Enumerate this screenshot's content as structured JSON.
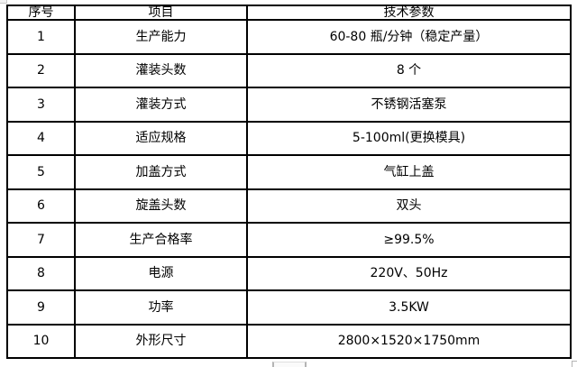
{
  "table": {
    "headers": [
      "序号",
      "项目",
      "技术参数"
    ],
    "rows": [
      {
        "no": "1",
        "item": "生产能力",
        "value": "60-80 瓶/分钟（稳定产量）"
      },
      {
        "no": "2",
        "item": "灌装头数",
        "value": "8 个"
      },
      {
        "no": "3",
        "item": "灌装方式",
        "value": "不锈钢活塞泵"
      },
      {
        "no": "4",
        "item": "适应规格",
        "value": "5-100ml(更换模具)"
      },
      {
        "no": "5",
        "item": "加盖方式",
        "value": "气缸上盖"
      },
      {
        "no": "6",
        "item": "旋盖头数",
        "value": "双头"
      },
      {
        "no": "7",
        "item": "生产合格率",
        "value": "≥99.5%"
      },
      {
        "no": "8",
        "item": "电源",
        "value": "220V、50Hz"
      },
      {
        "no": "9",
        "item": "功率",
        "value": "3.5KW"
      },
      {
        "no": "10",
        "item": "外形尺寸",
        "value": "2800×1520×1750mm"
      }
    ]
  },
  "colors": {
    "border": "#000000",
    "text": "#000000",
    "background": "#ffffff",
    "handle_gray": "#b4b4b4"
  }
}
